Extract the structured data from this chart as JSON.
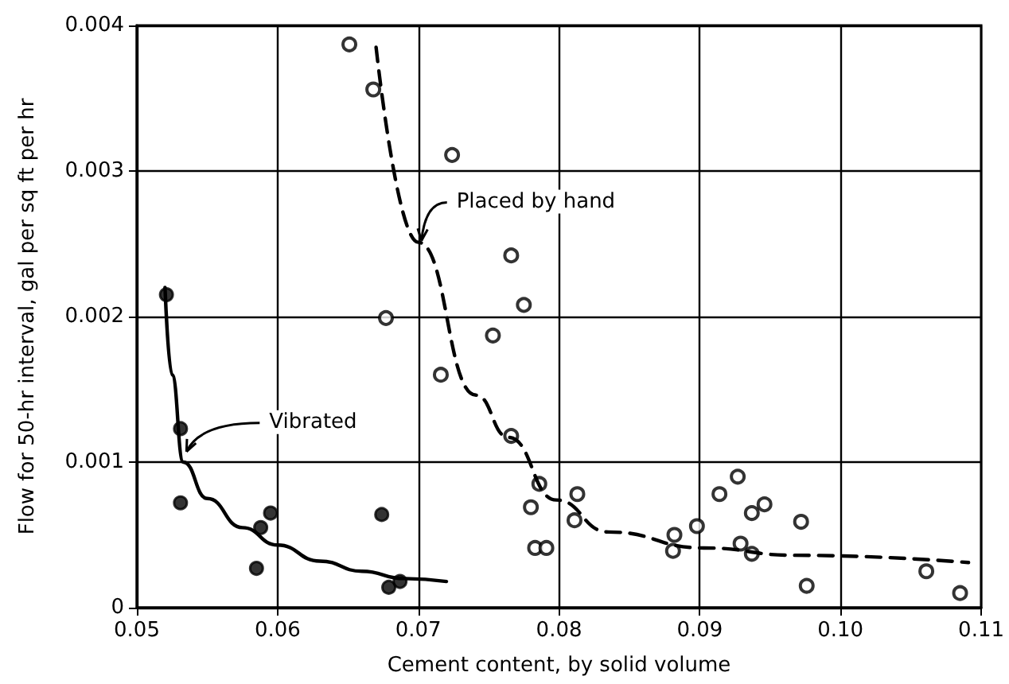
{
  "chart_data": {
    "type": "scatter",
    "xlabel": "Cement content, by solid volume",
    "ylabel": "Flow for 50-hr interval, gal per sq ft per hr",
    "series": [
      {
        "color": "#000000",
        "marker": "circle",
        "x": [
          0.0521,
          0.0531,
          0.0531,
          0.0588,
          0.0595,
          0.0585,
          0.0674,
          0.0679,
          0.0687
        ],
        "values": [
          0.00215,
          0.00123,
          0.00072,
          0.00055,
          0.00065,
          0.00027,
          0.00064,
          0.00014,
          0.00018
        ]
      },
      {
        "color": "#000000",
        "marker": "emptyCircle",
        "x": [
          0.0651,
          0.0668,
          0.0724,
          0.0677,
          0.0716,
          0.0753,
          0.0766,
          0.0775,
          0.0766,
          0.0786,
          0.078,
          0.0783,
          0.0791,
          0.0813,
          0.0811,
          0.0882,
          0.0881,
          0.0898,
          0.0914,
          0.0927,
          0.0937,
          0.0946,
          0.0929,
          0.0937,
          0.0972,
          0.0976,
          0.1061,
          0.1085
        ],
        "values": [
          0.00387,
          0.00356,
          0.00311,
          0.00199,
          0.0016,
          0.00187,
          0.00242,
          0.00208,
          0.00118,
          0.00085,
          0.00069,
          0.00041,
          0.00041,
          0.00078,
          0.0006,
          0.0005,
          0.00039,
          0.00056,
          0.00078,
          0.0009,
          0.00065,
          0.00071,
          0.00044,
          0.00037,
          0.00059,
          0.00015,
          0.00025,
          0.0001
        ]
      },
      {
        "type": "line",
        "color": "#000000",
        "line_style": "solid",
        "marker": "none",
        "x": [
          0.052,
          0.0525,
          0.0533,
          0.055,
          0.0575,
          0.06,
          0.063,
          0.066,
          0.069,
          0.072
        ],
        "values": [
          0.0022,
          0.0016,
          0.001,
          0.00075,
          0.00055,
          0.00043,
          0.00032,
          0.00025,
          0.0002,
          0.00018
        ]
      },
      {
        "type": "line",
        "color": "#000000",
        "line_style": "dashed",
        "marker": "none",
        "x": [
          0.067,
          0.07,
          0.0741,
          0.0764,
          0.0798,
          0.0835,
          0.0903,
          0.0967,
          0.1091
        ],
        "values": [
          0.00385,
          0.00251,
          0.00146,
          0.00117,
          0.00074,
          0.00052,
          0.00041,
          0.00036,
          0.00031
        ]
      }
    ],
    "annotations": [
      {
        "text": "Placed by hand",
        "x": 0.07,
        "y": 0.0025
      },
      {
        "text": "Vibrated",
        "x": 0.0533,
        "y": 0.00105
      }
    ],
    "xlim": [
      0.05,
      0.11
    ],
    "xticks": [
      0.05,
      0.06,
      0.07,
      0.08,
      0.09,
      {
        "value": 0.1,
        "label": "0.10"
      },
      0.11
    ],
    "ylim": [
      0,
      0.004
    ],
    "yticks": [
      0,
      0.001,
      0.002,
      0.003,
      0.004
    ],
    "grid": true
  }
}
